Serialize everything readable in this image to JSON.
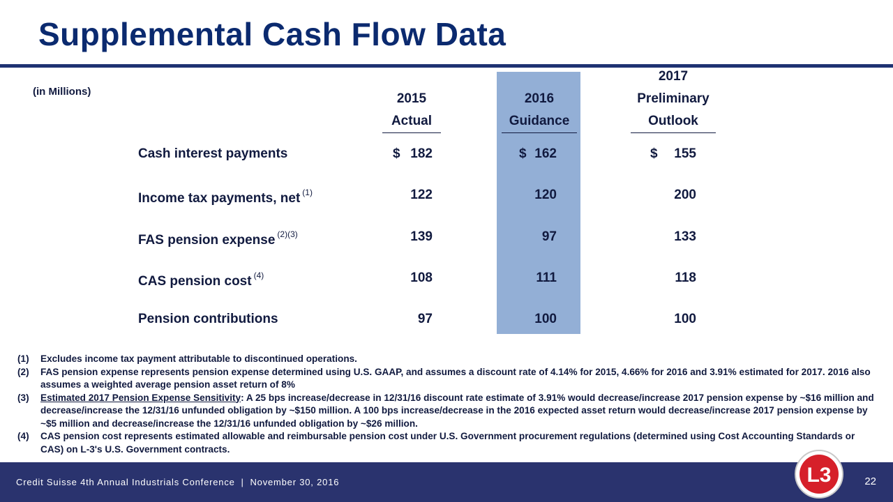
{
  "title": "Supplemental Cash Flow Data",
  "units": "(in Millions)",
  "columns": [
    {
      "line1": "",
      "line2": "2015",
      "line3": "Actual"
    },
    {
      "line1": "",
      "line2": "2016",
      "line3": "Guidance"
    },
    {
      "line1": "2017",
      "line2": "Preliminary",
      "line3": "Outlook"
    }
  ],
  "currency_symbol": "$",
  "rows": [
    {
      "label": "Cash interest payments",
      "note": "",
      "values": [
        "182",
        "162",
        "155"
      ]
    },
    {
      "label": "Income tax payments, net",
      "note": "(1)",
      "values": [
        "122",
        "120",
        "200"
      ]
    },
    {
      "label": "FAS pension expense",
      "note": "(2)(3)",
      "values": [
        "139",
        "97",
        "133"
      ]
    },
    {
      "label": "CAS pension cost",
      "note": "(4)",
      "values": [
        "108",
        "111",
        "118"
      ]
    },
    {
      "label": "Pension contributions",
      "note": "",
      "values": [
        "97",
        "100",
        "100"
      ]
    }
  ],
  "footnotes": [
    {
      "num": "(1)",
      "lead": "",
      "text": "Excludes income tax payment attributable to discontinued operations."
    },
    {
      "num": "(2)",
      "lead": "",
      "text": "FAS pension expense represents pension expense determined using U.S. GAAP, and assumes a discount rate of 4.14% for 2015, 4.66% for 2016 and 3.91% estimated for 2017.  2016 also assumes a weighted average pension asset return of 8%"
    },
    {
      "num": "(3)",
      "lead": "Estimated 2017 Pension Expense Sensitivity",
      "text": ": A 25 bps increase/decrease in 12/31/16 discount rate estimate of 3.91% would decrease/increase 2017 pension expense by ~$16 million and decrease/increase the 12/31/16 unfunded obligation by ~$150 million.  A 100 bps increase/decrease in the 2016 expected asset return would decrease/increase 2017 pension expense by ~$5 million and decrease/increase the 12/31/16 unfunded obligation by ~$26 million."
    },
    {
      "num": "(4)",
      "lead": "",
      "text": "CAS pension cost represents estimated allowable and reimbursable pension cost under U.S. Government procurement regulations (determined using Cost Accounting Standards or CAS) on L-3's U.S. Government contracts."
    }
  ],
  "footer": {
    "text": "Credit Suisse 4th Annual Industrials Conference  |  November 30, 2016",
    "page": "22"
  },
  "logo": {
    "text": "L3",
    "color": "#d6202a"
  },
  "colors": {
    "title": "#0b2a6f",
    "highlight": "#93afd6",
    "footer_bg": "#2a336e"
  }
}
